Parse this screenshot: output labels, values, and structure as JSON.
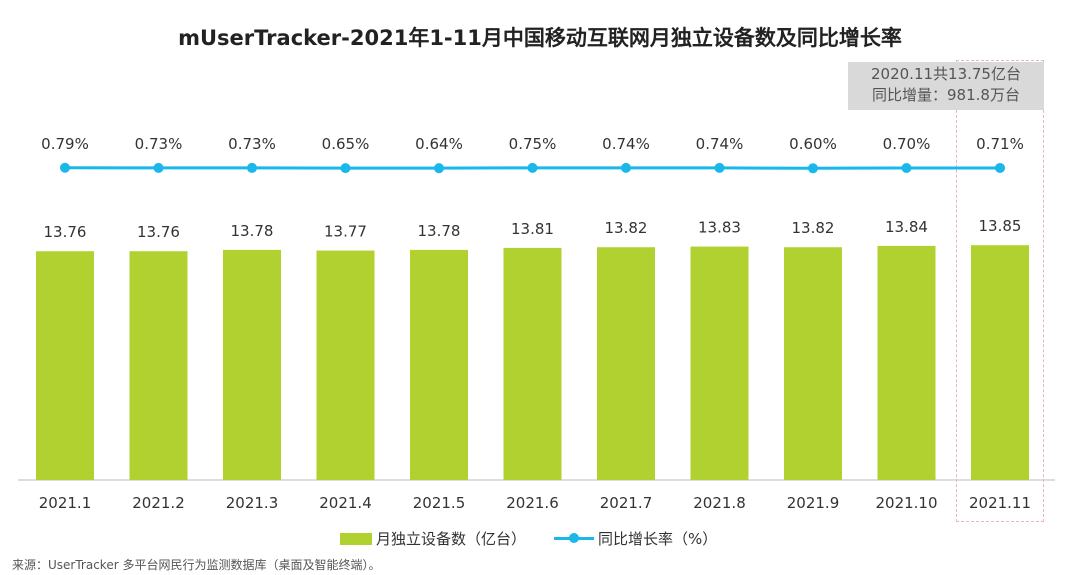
{
  "chart_data": {
    "type": "bar",
    "title": "mUserTracker-2021年1-11月中国移动互联网月独立设备数及同比增长率",
    "categories": [
      "2021.1",
      "2021.2",
      "2021.3",
      "2021.4",
      "2021.5",
      "2021.6",
      "2021.7",
      "2021.8",
      "2021.9",
      "2021.10",
      "2021.11"
    ],
    "series": [
      {
        "name": "月独立设备数（亿台）",
        "type": "bar",
        "color": "#b0d12f",
        "values": [
          13.76,
          13.76,
          13.78,
          13.77,
          13.78,
          13.81,
          13.82,
          13.83,
          13.82,
          13.84,
          13.85
        ],
        "labels": [
          "13.76",
          "13.76",
          "13.78",
          "13.77",
          "13.78",
          "13.81",
          "13.82",
          "13.83",
          "13.82",
          "13.84",
          "13.85"
        ]
      },
      {
        "name": "同比增长率（%）",
        "type": "line",
        "color": "#1ab7ea",
        "values": [
          0.79,
          0.73,
          0.73,
          0.65,
          0.64,
          0.75,
          0.74,
          0.74,
          0.6,
          0.7,
          0.71
        ],
        "labels": [
          "0.79%",
          "0.73%",
          "0.73%",
          "0.65%",
          "0.64%",
          "0.75%",
          "0.74%",
          "0.74%",
          "0.60%",
          "0.70%",
          "0.71%"
        ]
      }
    ],
    "annotation": {
      "line1": "2020.11共13.75亿台",
      "line2": "同比增量：981.8万台"
    },
    "legend": "bottom",
    "grid": false
  },
  "source": "来源：UserTracker 多平台网民行为监测数据库（桌面及智能终端）。"
}
